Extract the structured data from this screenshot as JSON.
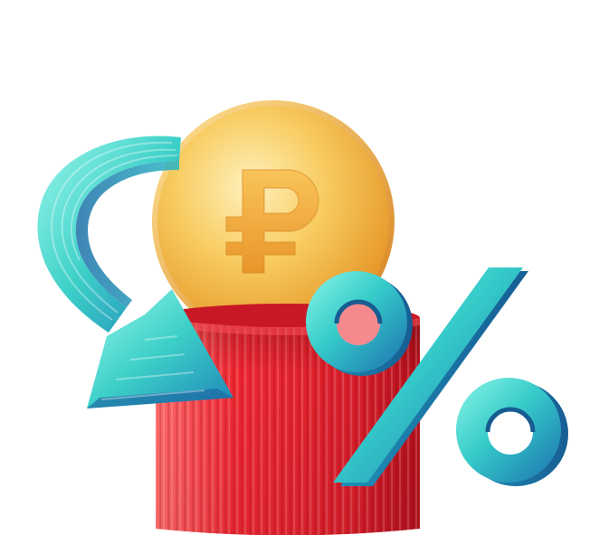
{
  "illustration": {
    "coin_symbol": "ruble-sign",
    "percent_symbol": "percent-sign",
    "colors": {
      "coin_light": "#fde7a0",
      "coin_mid": "#f6c453",
      "coin_dark": "#e79a2a",
      "box_light": "#ff5a5a",
      "box_mid": "#e01f2a",
      "box_dark": "#a50f1a",
      "teal_light": "#7ff3e6",
      "teal_mid": "#2ec9c9",
      "teal_dark": "#1a6fa8"
    }
  }
}
